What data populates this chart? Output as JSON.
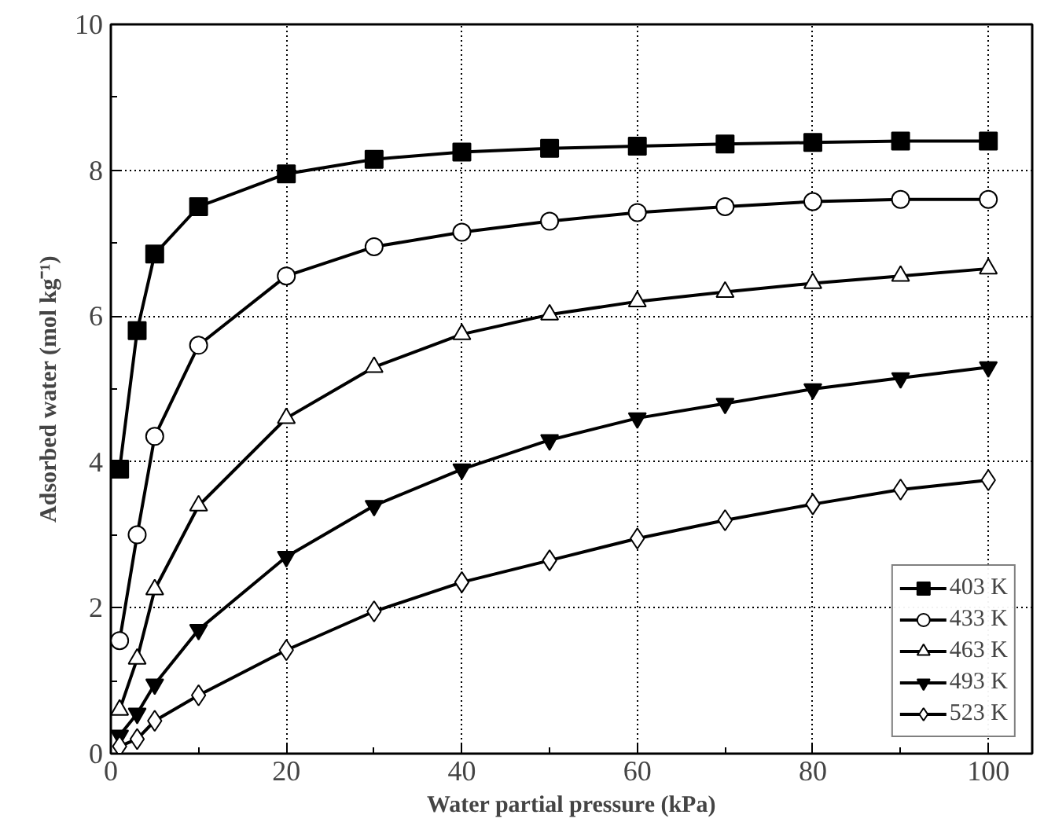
{
  "chart_data": {
    "type": "line",
    "xlabel": "Water partial pressure (kPa)",
    "ylabel": "Adsorbed water (mol kg⁻¹)",
    "x": [
      1,
      3,
      5,
      10,
      20,
      30,
      40,
      50,
      60,
      70,
      80,
      90,
      100
    ],
    "series": [
      {
        "name": "403 K",
        "color": "#000000",
        "marker": "square",
        "values": [
          3.9,
          5.8,
          6.85,
          7.5,
          7.95,
          8.15,
          8.25,
          8.3,
          8.33,
          8.36,
          8.38,
          8.4,
          8.4
        ]
      },
      {
        "name": "433 K",
        "color": "#000000",
        "marker": "circle",
        "values": [
          1.55,
          3.0,
          4.35,
          5.6,
          6.55,
          6.95,
          7.15,
          7.3,
          7.42,
          7.5,
          7.57,
          7.6,
          7.6
        ]
      },
      {
        "name": "463 K",
        "color": "#000000",
        "marker": "triangle",
        "values": [
          0.6,
          1.3,
          2.25,
          3.4,
          4.6,
          5.3,
          5.75,
          6.02,
          6.2,
          6.33,
          6.45,
          6.55,
          6.65
        ]
      },
      {
        "name": "493 K",
        "color": "#000000",
        "marker": "triangle",
        "values": [
          0.25,
          0.55,
          0.95,
          1.7,
          2.7,
          3.4,
          3.9,
          4.3,
          4.6,
          4.8,
          5.0,
          5.15,
          5.3
        ]
      },
      {
        "name": "523 K",
        "color": "#000000",
        "marker": "diamond",
        "values": [
          0.1,
          0.2,
          0.45,
          0.8,
          1.42,
          1.95,
          2.35,
          2.65,
          2.95,
          3.2,
          3.42,
          3.62,
          3.75
        ]
      }
    ],
    "xlim": [
      0,
      105
    ],
    "xticks": [
      0,
      20,
      40,
      60,
      80,
      100
    ],
    "ylim": [
      0,
      10
    ],
    "yticks": [
      0,
      2,
      4,
      6,
      8,
      10
    ],
    "grid": true,
    "legend": "bottom right",
    "line_style": "solid"
  }
}
